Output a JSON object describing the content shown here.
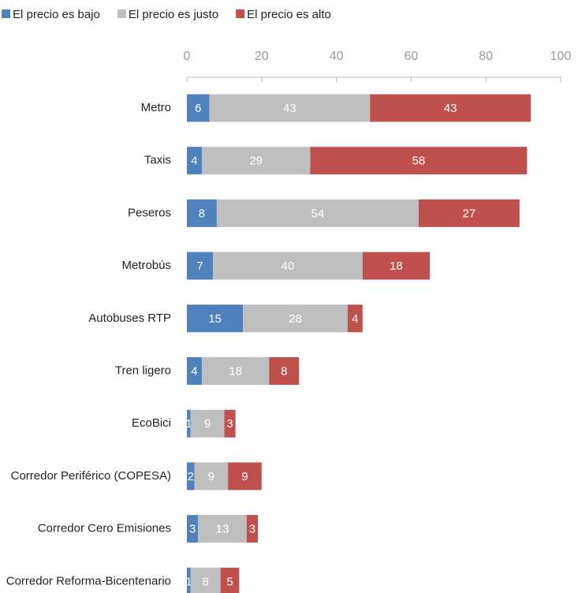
{
  "chart_data": {
    "type": "stacked_bar_horizontal",
    "categories": [
      "Metro",
      "Taxis",
      "Peseros",
      "Metrobús",
      "Autobuses RTP",
      "Tren ligero",
      "EcoBici",
      "Corredor Periférico (COPESA)",
      "Corredor Cero Emisiones",
      "Corredor Reforma-Bicentenario"
    ],
    "series": [
      {
        "name": "El precio es bajo",
        "color": "#4f81bd",
        "values": [
          6,
          4,
          8,
          7,
          15,
          4,
          1,
          2,
          3,
          1
        ]
      },
      {
        "name": "El precio es justo",
        "color": "#bfbfbf",
        "values": [
          43,
          29,
          54,
          40,
          28,
          18,
          9,
          9,
          13,
          8
        ]
      },
      {
        "name": "El precio es alto",
        "color": "#c0504d",
        "values": [
          43,
          58,
          27,
          18,
          4,
          8,
          3,
          9,
          3,
          5
        ]
      }
    ],
    "xlim": [
      0,
      100
    ],
    "xticks": [
      0,
      20,
      40,
      60,
      80,
      100
    ],
    "legend": "top-left"
  }
}
